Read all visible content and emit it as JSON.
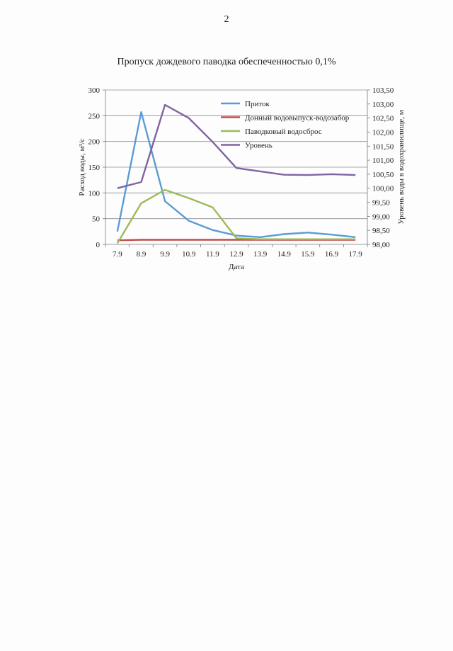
{
  "page": {
    "number": "2"
  },
  "chart_data": {
    "type": "line",
    "title": "Пропуск дождевого паводка обеспеченностью 0,1%",
    "xlabel": "Дата",
    "ylabel_left": "Расход воды, м³/с",
    "ylabel_right": "Уровень воды в водохранилище, м",
    "categories": [
      "7.9",
      "8.9",
      "9.9",
      "10.9",
      "11.9",
      "12.9",
      "13.9",
      "14.9",
      "15.9",
      "16.9",
      "17.9"
    ],
    "ylim_left": [
      0,
      300
    ],
    "yticks_left": [
      "0",
      "50",
      "100",
      "150",
      "200",
      "250",
      "300"
    ],
    "ylim_right": [
      98.0,
      103.5
    ],
    "yticks_right": [
      "98,00",
      "98,50",
      "99,00",
      "99,50",
      "100,00",
      "100,50",
      "101,00",
      "101,50",
      "102,00",
      "102,50",
      "103,00",
      "103,50"
    ],
    "grid": true,
    "legend_position": "top-right",
    "series": [
      {
        "name": "Приток",
        "axis": "left",
        "color": "#5b9bd5",
        "values": [
          25,
          257,
          84,
          46,
          28,
          17,
          14,
          20,
          23,
          19,
          14
        ]
      },
      {
        "name": "Донный водовыпуск-водозабор",
        "axis": "left",
        "color": "#c0504d",
        "values": [
          8,
          9,
          9,
          9,
          9,
          9,
          9,
          9,
          9,
          9,
          9
        ]
      },
      {
        "name": "Паводковый водосброс",
        "axis": "left",
        "color": "#9bbb59",
        "values": [
          2,
          80,
          106,
          90,
          72,
          12,
          10,
          10,
          10,
          10,
          10
        ]
      },
      {
        "name": "Уровень",
        "axis": "right",
        "color": "#8064a2",
        "values": [
          100.0,
          100.22,
          102.97,
          102.5,
          101.65,
          100.72,
          100.6,
          100.48,
          100.47,
          100.5,
          100.47
        ]
      }
    ]
  }
}
